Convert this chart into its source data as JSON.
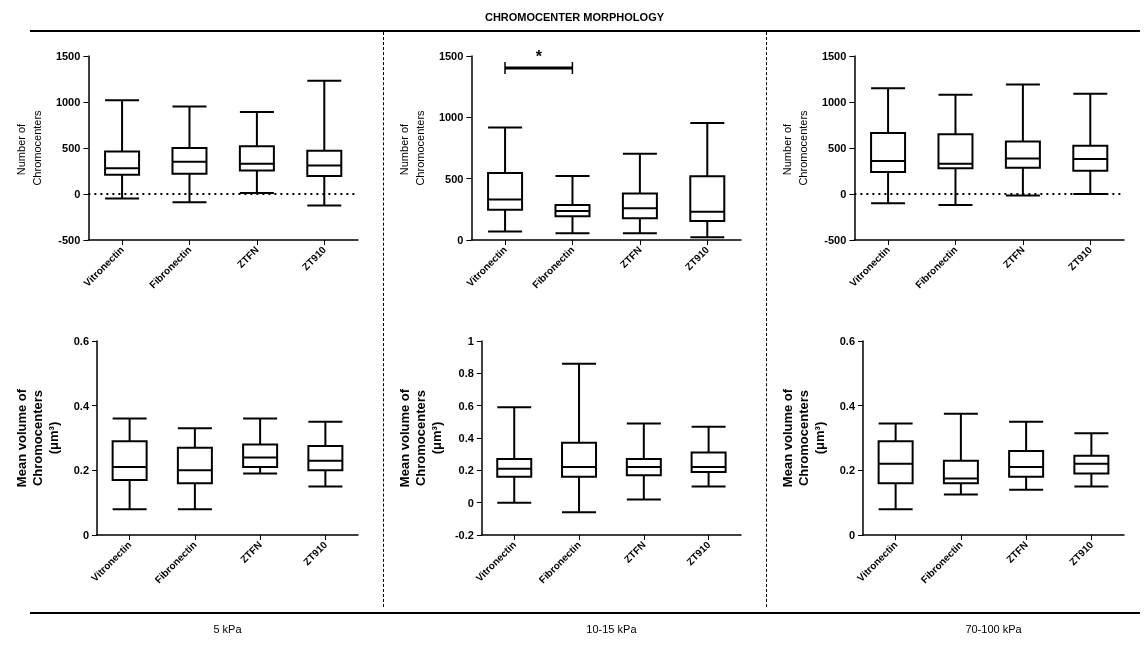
{
  "chart_data": [
    {
      "type": "box",
      "categories": [
        "Vitronectin",
        "Fibronectin",
        "ZTFN",
        "ZT910"
      ],
      "ylabel": "Number of  Chromocenters",
      "ylim": [
        -500,
        1500
      ],
      "yticks": [
        -500,
        0,
        500,
        1000,
        1500
      ],
      "color": "#000000",
      "ref_lines": [
        {
          "axis": "y",
          "value": 0,
          "line_style": "dotted",
          "color": "#000000"
        }
      ],
      "boxes": [
        {
          "low": -50,
          "q1": 209,
          "median": 280,
          "q3": 463,
          "high": 1020
        },
        {
          "low": -90,
          "q1": 220,
          "median": 350,
          "q3": 500,
          "high": 950
        },
        {
          "low": 10,
          "q1": 255,
          "median": 330,
          "q3": 520,
          "high": 890
        },
        {
          "low": -125,
          "q1": 195,
          "median": 310,
          "q3": 470,
          "high": 1230
        }
      ]
    },
    {
      "type": "box",
      "title": "CHROMOCENTER MORPHOLOGY",
      "categories": [
        "Vitronectin",
        "Fibronectin",
        "ZTFN",
        "ZT910"
      ],
      "ylabel": "Number of  Chromocenters",
      "ylim": [
        0,
        1500
      ],
      "yticks": [
        0,
        500,
        1000,
        1500
      ],
      "color": "#000000",
      "annotations": [
        "*"
      ],
      "boxes": [
        {
          "low": 70,
          "q1": 247,
          "median": 330,
          "q3": 547,
          "high": 917
        },
        {
          "low": 55,
          "q1": 194,
          "median": 236,
          "q3": 286,
          "high": 522
        },
        {
          "low": 55,
          "q1": 178,
          "median": 258,
          "q3": 380,
          "high": 703
        },
        {
          "low": 22,
          "q1": 155,
          "median": 230,
          "q3": 519,
          "high": 953
        }
      ]
    },
    {
      "type": "box",
      "categories": [
        "Vitronectin",
        "Fibronectin",
        "ZTFN",
        "ZT910"
      ],
      "ylabel": "Number of  Chromocenters",
      "ylim": [
        -500,
        1500
      ],
      "yticks": [
        -500,
        0,
        500,
        1000,
        1500
      ],
      "color": "#000000",
      "ref_lines": [
        {
          "axis": "y",
          "value": 0,
          "line_style": "dotted",
          "color": "#000000"
        }
      ],
      "boxes": [
        {
          "low": -100,
          "q1": 238,
          "median": 360,
          "q3": 662,
          "high": 1150
        },
        {
          "low": -120,
          "q1": 280,
          "median": 330,
          "q3": 650,
          "high": 1080
        },
        {
          "low": -15,
          "q1": 286,
          "median": 387,
          "q3": 570,
          "high": 1190
        },
        {
          "low": 0,
          "q1": 253,
          "median": 380,
          "q3": 524,
          "high": 1090
        }
      ]
    },
    {
      "type": "box",
      "categories": [
        "Vitronectin",
        "Fibronectin",
        "ZTFN",
        "ZT910"
      ],
      "ylabel": "Mean volume of Chromocenters (μm³)",
      "xlabel": "5 kPa",
      "ylim": [
        0,
        0.6
      ],
      "yticks": [
        0,
        0.2,
        0.4,
        0.6
      ],
      "color": "#000000",
      "boxes": [
        {
          "low": 0.08,
          "q1": 0.17,
          "median": 0.21,
          "q3": 0.29,
          "high": 0.36
        },
        {
          "low": 0.08,
          "q1": 0.16,
          "median": 0.2,
          "q3": 0.27,
          "high": 0.33
        },
        {
          "low": 0.19,
          "q1": 0.21,
          "median": 0.24,
          "q3": 0.28,
          "high": 0.36
        },
        {
          "low": 0.15,
          "q1": 0.2,
          "median": 0.23,
          "q3": 0.275,
          "high": 0.35
        }
      ]
    },
    {
      "type": "box",
      "categories": [
        "Vitronectin",
        "Fibronectin",
        "ZTFN",
        "ZT910"
      ],
      "ylabel": "Mean volume of Chromocenters (μm³)",
      "xlabel": "10-15 kPa",
      "ylim": [
        -0.2,
        1.0
      ],
      "yticks": [
        -0.2,
        0,
        0.2,
        0.4,
        0.6,
        0.8,
        1.0
      ],
      "color": "#000000",
      "boxes": [
        {
          "low": 0,
          "q1": 0.16,
          "median": 0.21,
          "q3": 0.27,
          "high": 0.59
        },
        {
          "low": -0.06,
          "q1": 0.16,
          "median": 0.22,
          "q3": 0.37,
          "high": 0.86
        },
        {
          "low": 0.02,
          "q1": 0.17,
          "median": 0.22,
          "q3": 0.27,
          "high": 0.49
        },
        {
          "low": 0.1,
          "q1": 0.19,
          "median": 0.22,
          "q3": 0.31,
          "high": 0.47
        }
      ]
    },
    {
      "type": "box",
      "categories": [
        "Vitronectin",
        "Fibronectin",
        "ZTFN",
        "ZT910"
      ],
      "ylabel": "Mean volume of Chromocenters (μm³)",
      "xlabel": "70-100 kPa",
      "ylim": [
        0,
        0.6
      ],
      "yticks": [
        0,
        0.2,
        0.4,
        0.6
      ],
      "color": "#000000",
      "boxes": [
        {
          "low": 0.08,
          "q1": 0.16,
          "median": 0.22,
          "q3": 0.29,
          "high": 0.345
        },
        {
          "low": 0.125,
          "q1": 0.16,
          "median": 0.175,
          "q3": 0.23,
          "high": 0.375
        },
        {
          "low": 0.14,
          "q1": 0.18,
          "median": 0.21,
          "q3": 0.26,
          "high": 0.35
        },
        {
          "low": 0.15,
          "q1": 0.19,
          "median": 0.22,
          "q3": 0.245,
          "high": 0.315
        }
      ]
    }
  ]
}
